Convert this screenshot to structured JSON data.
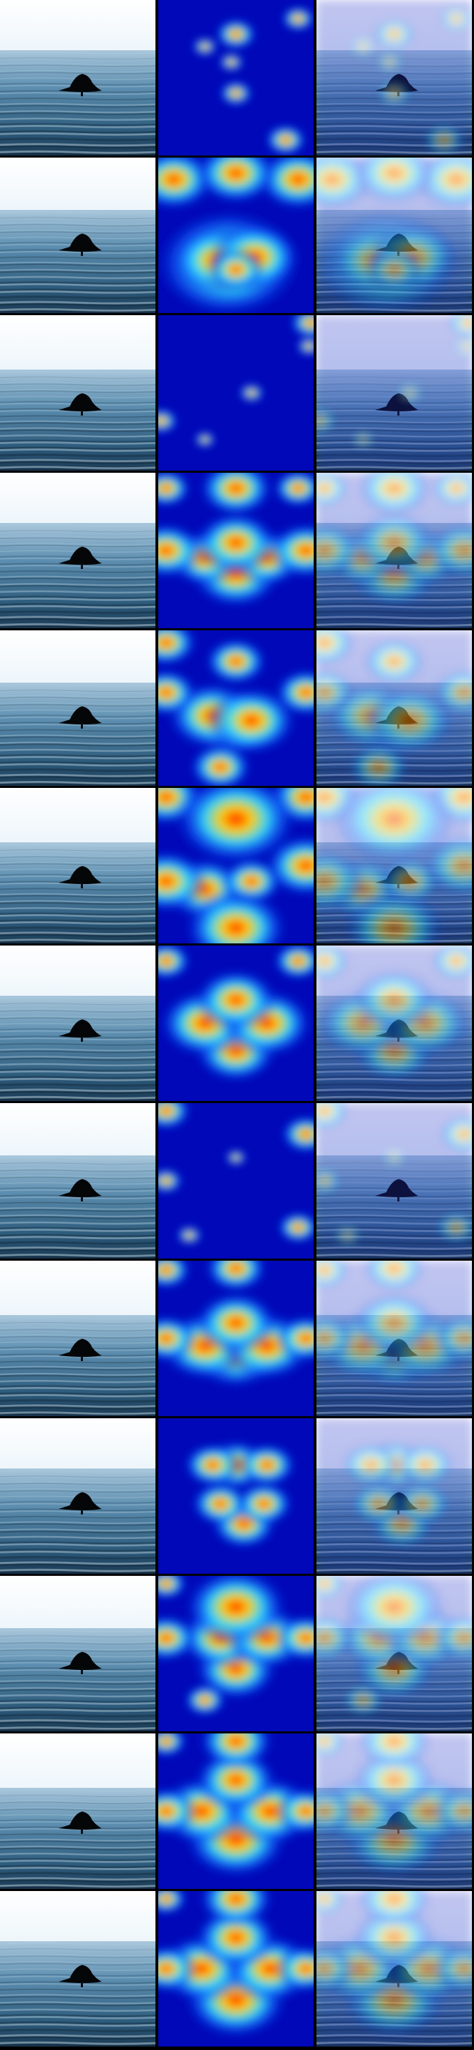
{
  "figure": {
    "rows": [
      {
        "heat": [
          [
            0.9,
            0.12,
            0.08
          ],
          [
            0.5,
            0.22,
            0.1
          ],
          [
            0.82,
            0.9,
            0.1
          ],
          [
            0.47,
            0.4,
            0.06
          ],
          [
            0.3,
            0.3,
            0.06
          ],
          [
            0.5,
            0.6,
            0.08
          ]
        ]
      },
      {
        "heat": [
          [
            0.45,
            0.68,
            0.35
          ],
          [
            0.38,
            0.66,
            0.22
          ],
          [
            0.62,
            0.64,
            0.22
          ],
          [
            0.5,
            0.72,
            0.14
          ],
          [
            0.1,
            0.14,
            0.2
          ],
          [
            0.9,
            0.14,
            0.2
          ],
          [
            0.5,
            0.1,
            0.2
          ]
        ]
      },
      {
        "heat": [
          [
            0.98,
            0.05,
            0.1
          ],
          [
            0.02,
            0.68,
            0.08
          ],
          [
            0.6,
            0.5,
            0.06
          ],
          [
            0.97,
            0.2,
            0.06
          ],
          [
            0.3,
            0.8,
            0.05
          ]
        ]
      },
      {
        "heat": [
          [
            0.5,
            0.65,
            0.22
          ],
          [
            0.3,
            0.55,
            0.18
          ],
          [
            0.7,
            0.55,
            0.18
          ],
          [
            0.5,
            0.45,
            0.2
          ],
          [
            0.05,
            0.1,
            0.12
          ],
          [
            0.9,
            0.1,
            0.12
          ],
          [
            0.5,
            0.1,
            0.18
          ],
          [
            0.05,
            0.5,
            0.18
          ],
          [
            0.95,
            0.5,
            0.18
          ]
        ]
      },
      {
        "heat": [
          [
            0.5,
            0.6,
            0.2
          ],
          [
            0.35,
            0.55,
            0.22
          ],
          [
            0.6,
            0.58,
            0.22
          ],
          [
            0.05,
            0.08,
            0.15
          ],
          [
            0.05,
            0.4,
            0.15
          ],
          [
            0.95,
            0.4,
            0.15
          ],
          [
            0.5,
            0.2,
            0.15
          ],
          [
            0.4,
            0.88,
            0.15
          ]
        ]
      },
      {
        "heat": [
          [
            0.95,
            0.06,
            0.18
          ],
          [
            0.05,
            0.06,
            0.18
          ],
          [
            0.5,
            0.2,
            0.3
          ],
          [
            0.3,
            0.65,
            0.2
          ],
          [
            0.6,
            0.6,
            0.15
          ],
          [
            0.05,
            0.6,
            0.2
          ],
          [
            0.95,
            0.5,
            0.2
          ],
          [
            0.5,
            0.9,
            0.25
          ]
        ]
      },
      {
        "heat": [
          [
            0.5,
            0.68,
            0.2
          ],
          [
            0.3,
            0.5,
            0.22
          ],
          [
            0.7,
            0.5,
            0.22
          ],
          [
            0.5,
            0.35,
            0.2
          ],
          [
            0.05,
            0.1,
            0.12
          ],
          [
            0.9,
            0.1,
            0.12
          ]
        ]
      },
      {
        "heat": [
          [
            0.95,
            0.2,
            0.12
          ],
          [
            0.05,
            0.05,
            0.12
          ],
          [
            0.05,
            0.5,
            0.08
          ],
          [
            0.5,
            0.35,
            0.05
          ],
          [
            0.9,
            0.8,
            0.1
          ],
          [
            0.2,
            0.85,
            0.06
          ]
        ]
      },
      {
        "heat": [
          [
            0.5,
            0.6,
            0.22
          ],
          [
            0.3,
            0.55,
            0.22
          ],
          [
            0.7,
            0.55,
            0.22
          ],
          [
            0.5,
            0.4,
            0.2
          ],
          [
            0.05,
            0.06,
            0.12
          ],
          [
            0.05,
            0.5,
            0.15
          ],
          [
            0.95,
            0.5,
            0.15
          ],
          [
            0.5,
            0.05,
            0.15
          ]
        ]
      },
      {
        "heat": [
          [
            0.55,
            0.68,
            0.16
          ],
          [
            0.4,
            0.55,
            0.14
          ],
          [
            0.68,
            0.55,
            0.14
          ],
          [
            0.5,
            0.3,
            0.16
          ],
          [
            0.35,
            0.3,
            0.14
          ],
          [
            0.7,
            0.3,
            0.14
          ]
        ]
      },
      {
        "heat": [
          [
            0.5,
            0.6,
            0.2
          ],
          [
            0.4,
            0.4,
            0.2
          ],
          [
            0.7,
            0.4,
            0.2
          ],
          [
            0.05,
            0.05,
            0.1
          ],
          [
            0.05,
            0.4,
            0.15
          ],
          [
            0.95,
            0.4,
            0.15
          ],
          [
            0.5,
            0.2,
            0.25
          ],
          [
            0.3,
            0.8,
            0.1
          ]
        ]
      },
      {
        "heat": [
          [
            0.5,
            0.68,
            0.25
          ],
          [
            0.28,
            0.5,
            0.22
          ],
          [
            0.72,
            0.5,
            0.22
          ],
          [
            0.5,
            0.3,
            0.2
          ],
          [
            0.05,
            0.05,
            0.1
          ],
          [
            0.05,
            0.5,
            0.15
          ],
          [
            0.95,
            0.5,
            0.15
          ],
          [
            0.5,
            0.05,
            0.18
          ]
        ]
      },
      {
        "heat": [
          [
            0.5,
            0.7,
            0.25
          ],
          [
            0.28,
            0.5,
            0.22
          ],
          [
            0.72,
            0.5,
            0.22
          ],
          [
            0.5,
            0.3,
            0.2
          ],
          [
            0.05,
            0.05,
            0.1
          ],
          [
            0.05,
            0.5,
            0.15
          ],
          [
            0.95,
            0.5,
            0.15
          ],
          [
            0.5,
            0.05,
            0.18
          ]
        ]
      }
    ]
  }
}
